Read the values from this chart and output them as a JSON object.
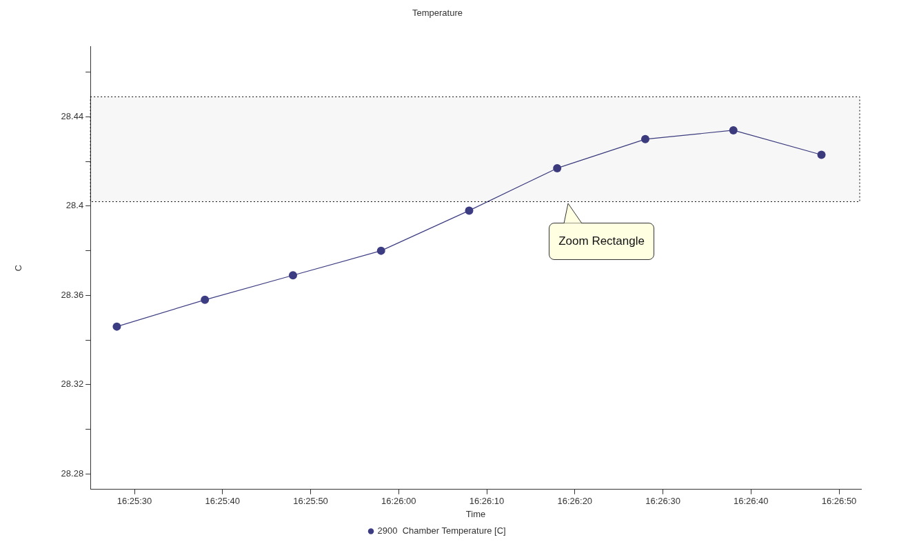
{
  "chart_data": {
    "type": "line",
    "title": "Temperature",
    "xlabel": "Time",
    "ylabel": "C",
    "x": [
      16.424444,
      16.427222,
      16.43,
      16.432778,
      16.435556,
      16.438333,
      16.441111,
      16.443889,
      16.446667
    ],
    "series": [
      {
        "name": "2900  Chamber Temperature [C]",
        "color": "#3c3c82",
        "values": [
          28.346,
          28.358,
          28.369,
          28.38,
          28.398,
          28.417,
          28.43,
          28.434,
          28.423
        ]
      }
    ],
    "xlim": [
      16.423611,
      16.447917
    ],
    "xticks": [
      {
        "value": 16.425,
        "label": "16:25:30"
      },
      {
        "value": 16.427778,
        "label": "16:25:40"
      },
      {
        "value": 16.430556,
        "label": "16:25:50"
      },
      {
        "value": 16.433333,
        "label": "16:26:00"
      },
      {
        "value": 16.436111,
        "label": "16:26:10"
      },
      {
        "value": 16.438889,
        "label": "16:26:20"
      },
      {
        "value": 16.441667,
        "label": "16:26:30"
      },
      {
        "value": 16.444444,
        "label": "16:26:40"
      },
      {
        "value": 16.447222,
        "label": "16:26:50"
      }
    ],
    "ylim": [
      28.273,
      28.4715
    ],
    "yticks": [
      28.28,
      {
        "value": 28.3,
        "label": null
      },
      28.32,
      {
        "value": 28.34,
        "label": null
      },
      28.36,
      {
        "value": 28.38,
        "label": null
      },
      {
        "value": 28.4,
        "label": "28.4"
      },
      {
        "value": 28.42,
        "label": null
      },
      28.44,
      {
        "value": 28.46,
        "label": null
      }
    ],
    "bands": [
      {
        "axis": "y",
        "from": 28.402,
        "to": 28.449,
        "label": "Zoom Rectangle",
        "color": "#000000"
      }
    ],
    "grid": false,
    "legend": "bottom",
    "marker": "circle",
    "line_style": "solid"
  }
}
